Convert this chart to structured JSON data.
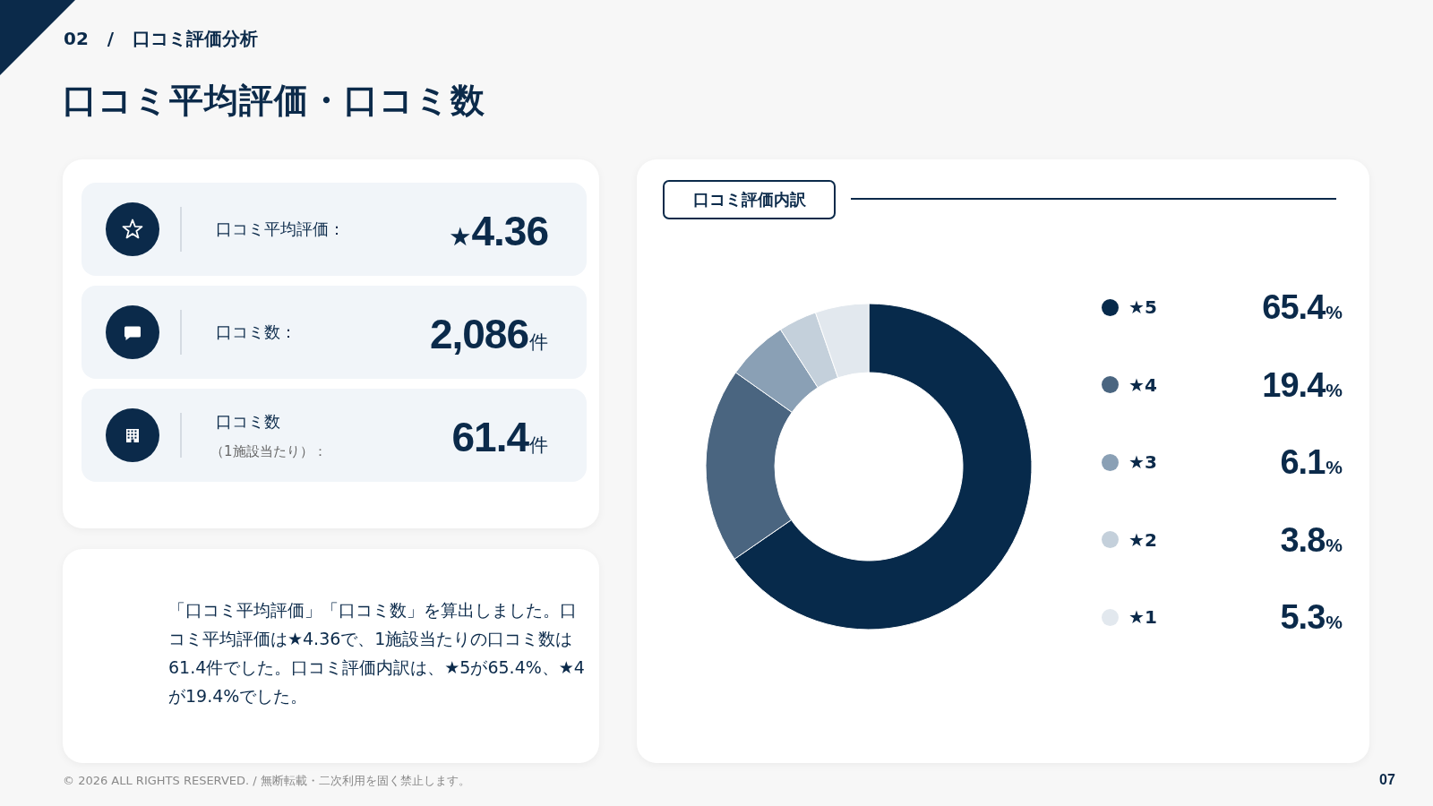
{
  "chart_data": [
    {
      "type": "other",
      "subtitle": "02 / 口コミ評価分析",
      "title": "口コミ平均評価・口コミ数",
      "annotations": [
        "口コミ平均評価：",
        "★4.36",
        "口コミ数：",
        "2,086件",
        "口コミ数",
        "（1施設当たり）：",
        "61.4件",
        "「口コミ平均評価」「口コミ数」を算出しました。口コミ平均評価は★4.36で、1施設当たりの口コミ数は61.4件でした。口コミ評価内訳は、★5が65.4%、★4が19.4%でした。",
        "© 2026 ALL RIGHTS RESERVED. / 無断転載・二次利用を固く禁止します。",
        "07"
      ]
    },
    {
      "type": "donut",
      "title": "口コミ評価内訳",
      "categories": [
        "★5",
        "★4",
        "★3",
        "★2",
        "★1"
      ],
      "values": [
        65.4,
        19.4,
        6.1,
        3.8,
        5.3
      ],
      "colors": [
        "#072a4b",
        "#4a6580",
        "#8aa0b5",
        "#c4d0db",
        "#e2e8ee"
      ],
      "value_labels": [
        "65.4%",
        "19.4%",
        "6.1%",
        "3.8%",
        "5.3%"
      ],
      "legend": "right"
    }
  ]
}
